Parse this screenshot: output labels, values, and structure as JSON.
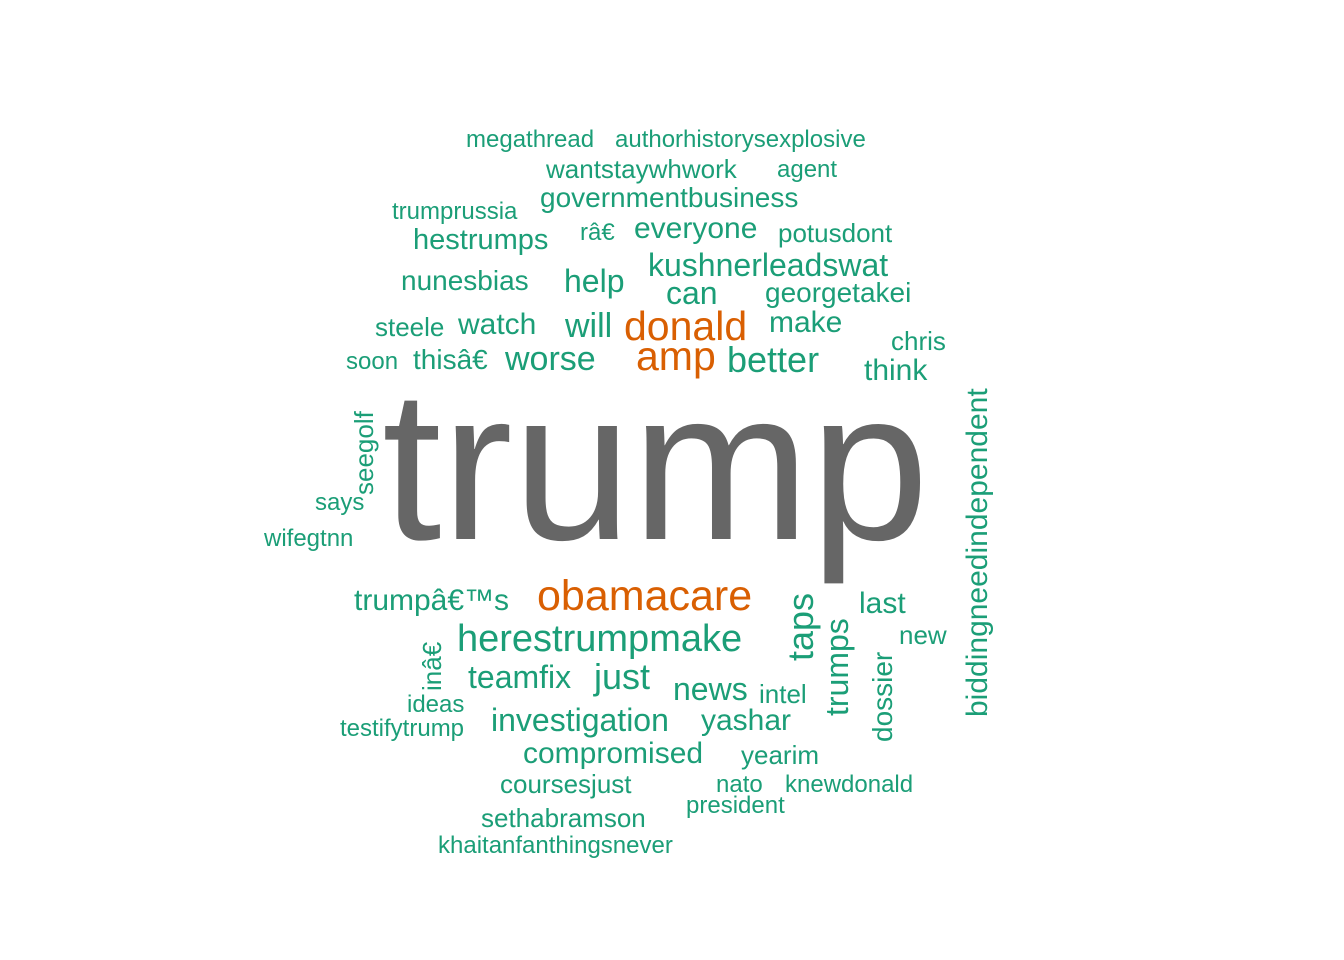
{
  "colors": {
    "frequent": "#1b9e77",
    "highlight": "#d95f02",
    "dominant": "#666666",
    "background": "#ffffff"
  },
  "words": {
    "megathread": "megathread",
    "authorhistorysexplosive": "authorhistorysexplosive",
    "wantstaywhwork": "wantstaywhwork",
    "agent": "agent",
    "governmentbusiness": "governmentbusiness",
    "trumprussia": "trumprussia",
    "hestrumps": "hestrumps",
    "ra_euro": "râ€",
    "everyone": "everyone",
    "potusdont": "potusdont",
    "kushnerleadswat": "kushnerleadswat",
    "nunesbias": "nunesbias",
    "help": "help",
    "can": "can",
    "georgetakei": "georgetakei",
    "steele": "steele",
    "watch": "watch",
    "will": "will",
    "donald": "donald",
    "make": "make",
    "chris": "chris",
    "soon": "soon",
    "this_euro": "thisâ€",
    "worse": "worse",
    "amp": "amp",
    "better": "better",
    "think": "think",
    "seegolf": "seegolf",
    "trump": "trump",
    "biddingneedindependent": "biddingneedindependent",
    "says": "says",
    "wifegtnn": "wifegtnn",
    "trumps_possessive": "trumpâ€™s",
    "obamacare": "obamacare",
    "taps": "taps",
    "last": "last",
    "trumps": "trumps",
    "new": "new",
    "in_euro": "inâ€",
    "herestrumpmake": "herestrumpmake",
    "dossier": "dossier",
    "teamfix": "teamfix",
    "just": "just",
    "news": "news",
    "intel": "intel",
    "ideas": "ideas",
    "testifytrump": "testifytrump",
    "investigation": "investigation",
    "yashar": "yashar",
    "compromised": "compromised",
    "yearim": "yearim",
    "coursesjust": "coursesjust",
    "nato": "nato",
    "knewdonald": "knewdonald",
    "president": "president",
    "sethabramson": "sethabramson",
    "khaitanfanthingsnever": "khaitanfanthingsnever"
  }
}
